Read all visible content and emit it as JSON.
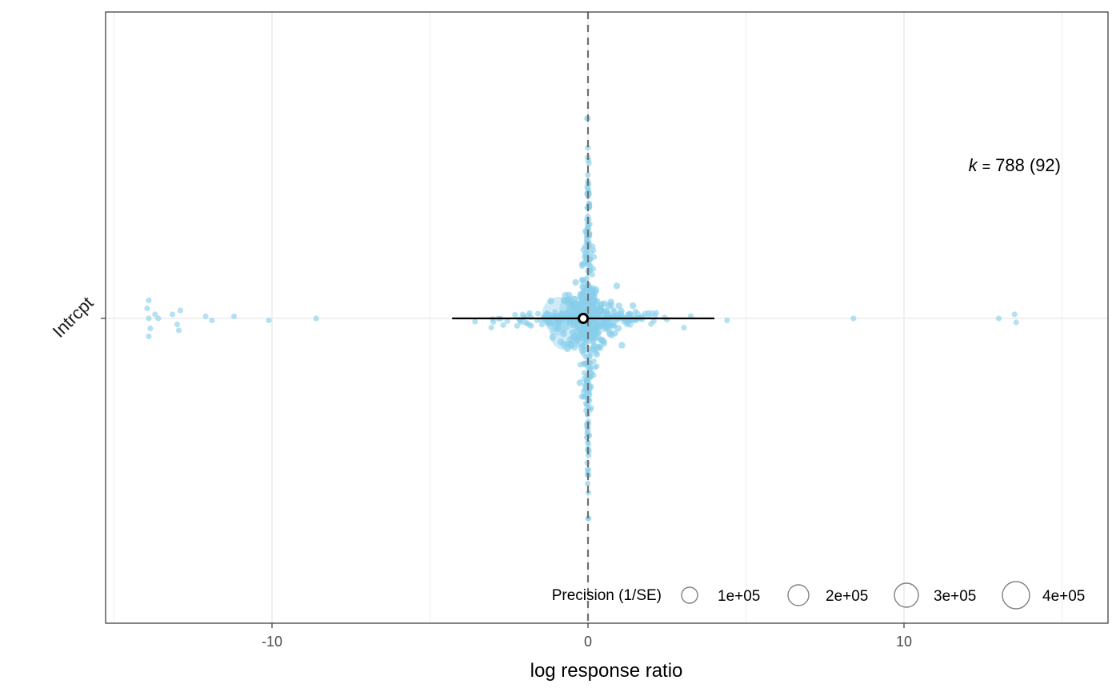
{
  "chart_data": {
    "type": "scatter",
    "subtype": "orchard-plot",
    "xlabel": "log response ratio",
    "ylabel": "",
    "xlim": [
      -15.0,
      15.0
    ],
    "x_ticks": [
      -10,
      0,
      10
    ],
    "x_tick_labels": [
      "-10",
      "0",
      "10"
    ],
    "categories": [
      "Intrcpt"
    ],
    "reference_line": {
      "x": 0,
      "style": "dashed"
    },
    "grid": true,
    "point_color": "#87ceeb",
    "estimate": {
      "category": "Intrcpt",
      "mean": -0.15,
      "ci_low": -4.3,
      "ci_high": 4.0
    },
    "annotation": {
      "k_label": "k",
      "equals": "=",
      "k_value": "788",
      "k_groups": "92"
    },
    "legend": {
      "title": "Precision (1/SE)",
      "placement": "bottom-right",
      "entries": [
        "1e+05",
        "2e+05",
        "3e+05",
        "4e+05"
      ]
    },
    "outlier_points": [
      {
        "x": -13.9,
        "y": 0.0
      },
      {
        "x": -13.95,
        "y": 0.05
      },
      {
        "x": -13.85,
        "y": -0.05
      },
      {
        "x": -13.9,
        "y": 0.09
      },
      {
        "x": -13.9,
        "y": -0.09
      },
      {
        "x": -13.7,
        "y": 0.02
      },
      {
        "x": -13.6,
        "y": 0.0
      },
      {
        "x": -13.15,
        "y": 0.02
      },
      {
        "x": -13.0,
        "y": -0.03
      },
      {
        "x": -12.9,
        "y": 0.04
      },
      {
        "x": -12.95,
        "y": -0.06
      },
      {
        "x": -12.1,
        "y": 0.01
      },
      {
        "x": -11.9,
        "y": -0.01
      },
      {
        "x": -11.2,
        "y": 0.01
      },
      {
        "x": -10.1,
        "y": -0.01
      },
      {
        "x": -8.6,
        "y": 0.0
      },
      {
        "x": 4.4,
        "y": -0.01
      },
      {
        "x": 8.4,
        "y": 0.0
      },
      {
        "x": 13.0,
        "y": 0.0
      },
      {
        "x": 13.5,
        "y": 0.02
      },
      {
        "x": 13.55,
        "y": -0.02
      }
    ]
  }
}
